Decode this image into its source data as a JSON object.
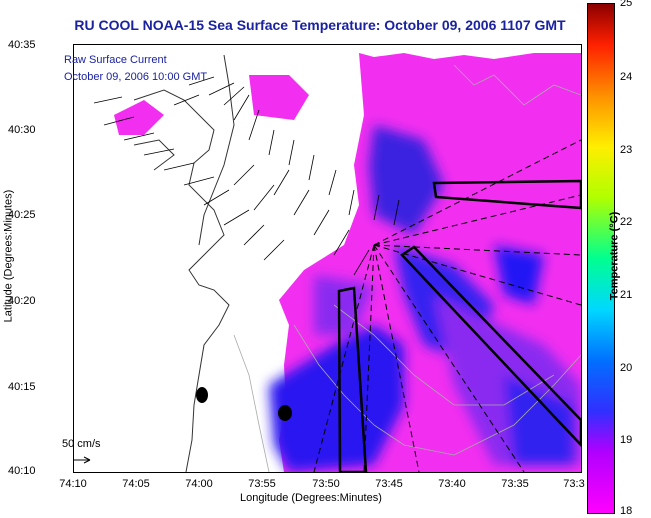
{
  "title": "RU COOL  NOAA-15  Sea Surface Temperature:  October 09, 2006 1107 GMT",
  "annotation": {
    "line1": "Raw Surface Current",
    "line2": "October 09, 2006 10:00 GMT"
  },
  "axes": {
    "xlabel": "Longitude (Degrees:Minutes)",
    "ylabel": "Latitude (Degrees:Minutes)",
    "xticks": [
      "74:10",
      "74:05",
      "74:00",
      "73:55",
      "73:50",
      "73:45",
      "73:40",
      "73:35",
      "73:3"
    ],
    "yticks": [
      "40:35",
      "40:30",
      "40:25",
      "40:20",
      "40:15",
      "40:10"
    ]
  },
  "scale_label": "50 cm/s",
  "colorbar": {
    "label": "Temperature (°C)",
    "ticks": [
      "25",
      "24",
      "23",
      "22",
      "21",
      "20",
      "19",
      "18"
    ],
    "colors": {
      "land": "#ffffff",
      "cold": "#ff00ff",
      "warm": "#1010ff"
    }
  }
}
